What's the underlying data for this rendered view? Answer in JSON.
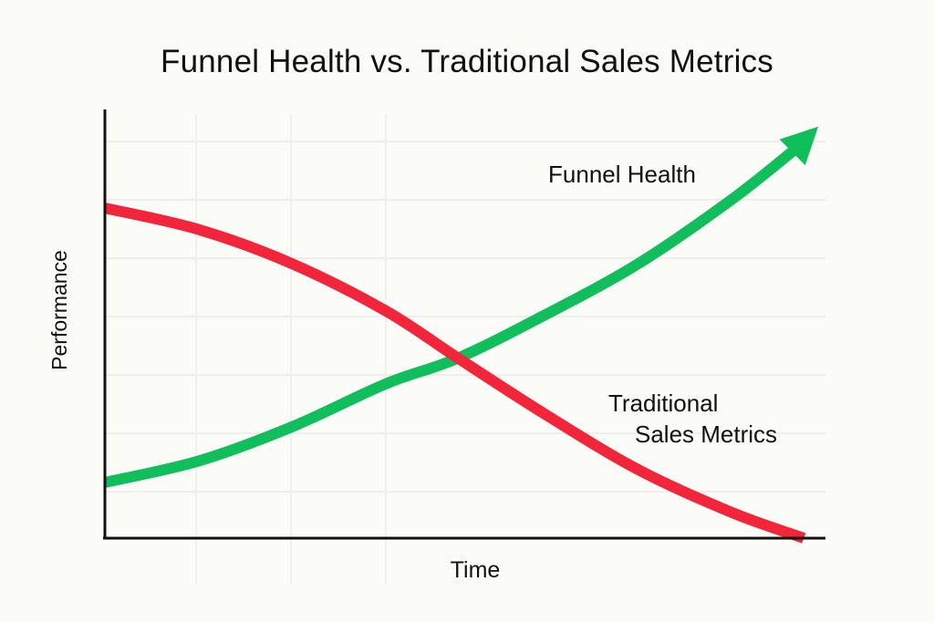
{
  "chart_data": {
    "type": "line",
    "title": "Funnel Health vs. Traditional Sales Metrics",
    "xlabel": "Time",
    "ylabel": "Performance",
    "xlim": [
      0,
      10
    ],
    "ylim": [
      0,
      10
    ],
    "grid": true,
    "series": [
      {
        "name": "Funnel Health",
        "color": "#10be5c",
        "arrow_end": true,
        "x": [
          0,
          1.3,
          2.6,
          3.9,
          4.9,
          6.1,
          7.4,
          8.7,
          9.6,
          9.9
        ],
        "y": [
          1.3,
          1.8,
          2.6,
          3.6,
          4.2,
          5.2,
          6.4,
          7.9,
          9.1,
          9.6
        ]
      },
      {
        "name": "Traditional Sales Metrics",
        "label_lines": [
          "Traditional",
          "Sales Metrics"
        ],
        "color": "#f2253b",
        "x": [
          0,
          1.3,
          2.6,
          3.9,
          4.9,
          6.1,
          7.4,
          8.7,
          9.7
        ],
        "y": [
          7.7,
          7.2,
          6.4,
          5.3,
          4.2,
          2.9,
          1.6,
          0.6,
          0
        ]
      }
    ]
  }
}
